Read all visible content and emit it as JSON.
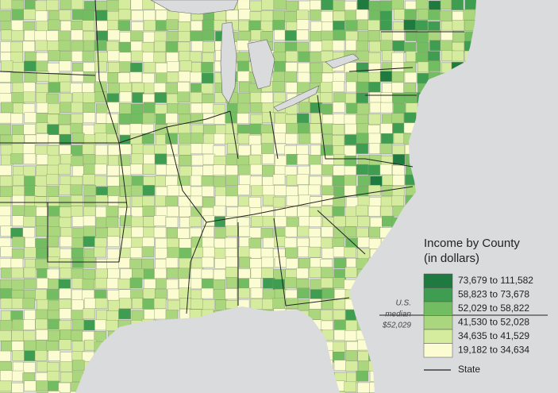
{
  "legend": {
    "title": "Income by County",
    "subtitle": "(in dollars)",
    "items": [
      {
        "label": "73,679 to 111,582",
        "color": "#1f7a40"
      },
      {
        "label": "58,823 to 73,678",
        "color": "#3f9d52"
      },
      {
        "label": "52,029 to 58,822",
        "color": "#72bd62"
      },
      {
        "label": "41,530 to 52,028",
        "color": "#aad67e"
      },
      {
        "label": "34,635 to 41,529",
        "color": "#d5eb9d"
      },
      {
        "label": "19,182 to 34,634",
        "color": "#fbfcd2"
      }
    ],
    "median_note": [
      "U.S.",
      "median",
      "$52,029"
    ],
    "state_label": "State"
  }
}
